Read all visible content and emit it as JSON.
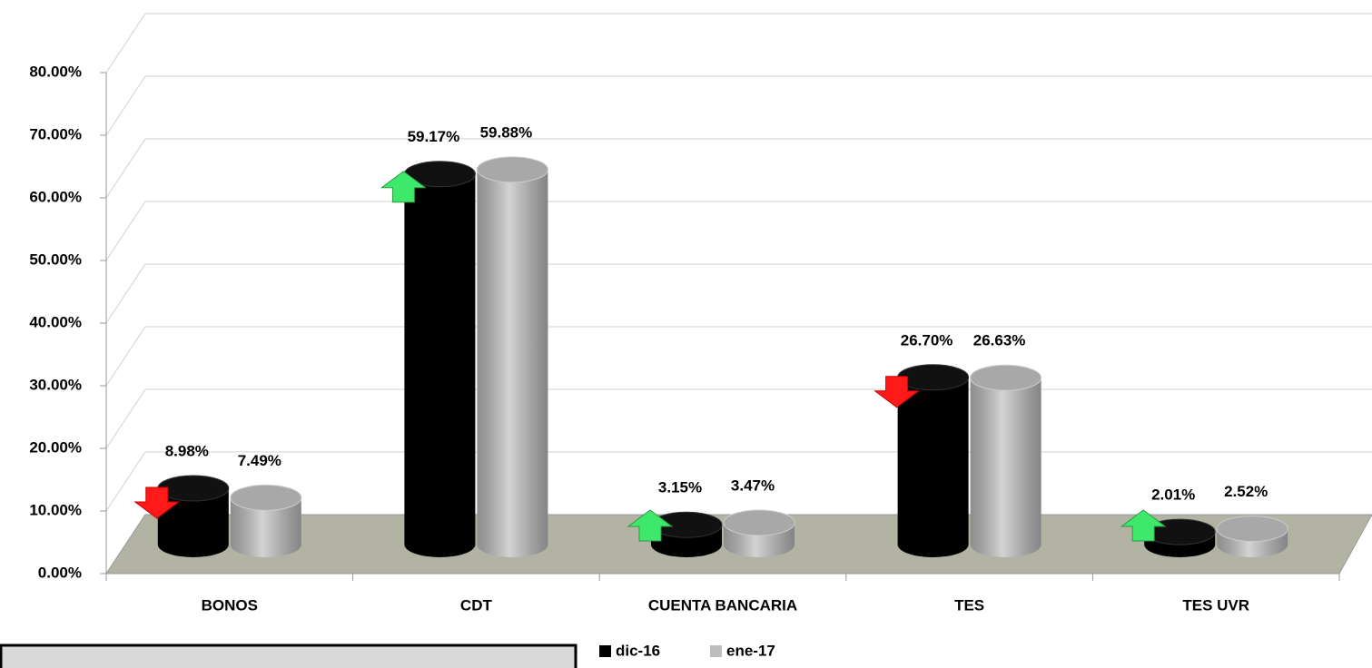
{
  "chart_data": {
    "type": "bar3d",
    "categories": [
      "BONOS",
      "CDT",
      "CUENTA BANCARIA",
      "TES",
      "TES UVR"
    ],
    "series": [
      {
        "name": "dic-16",
        "color": "#000000",
        "values": [
          8.98,
          59.17,
          3.15,
          26.7,
          2.01
        ],
        "value_labels": [
          "8.98%",
          "59.17%",
          "3.15%",
          "26.70%",
          "2.01%"
        ]
      },
      {
        "name": "ene-17",
        "color": "#bdbdbd",
        "values": [
          7.49,
          59.88,
          3.47,
          26.63,
          2.52
        ],
        "value_labels": [
          "7.49%",
          "59.88%",
          "3.47%",
          "26.63%",
          "2.52%"
        ]
      }
    ],
    "ylim": [
      0,
      80
    ],
    "yticks": [
      {
        "value": 0,
        "label": "0.00%"
      },
      {
        "value": 10,
        "label": "10.00%"
      },
      {
        "value": 20,
        "label": "20.00%"
      },
      {
        "value": 30,
        "label": "30.00%"
      },
      {
        "value": 40,
        "label": "40.00%"
      },
      {
        "value": 50,
        "label": "50.00%"
      },
      {
        "value": 60,
        "label": "60.00%"
      },
      {
        "value": 70,
        "label": "70.00%"
      },
      {
        "value": 80,
        "label": "80.00%"
      }
    ],
    "grid": true
  }
}
